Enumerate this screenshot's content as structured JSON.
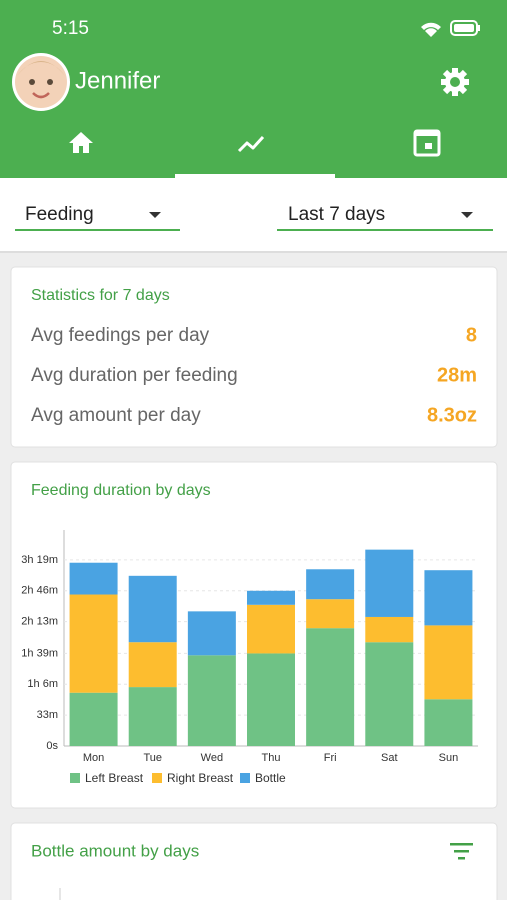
{
  "status_bar": {
    "time": "5:15"
  },
  "header": {
    "name": "Jennifer"
  },
  "filters": {
    "metric": "Feeding",
    "range": "Last 7 days"
  },
  "stats": {
    "title": "Statistics for 7 days",
    "rows": [
      {
        "label": "Avg feedings per day",
        "value": "8"
      },
      {
        "label": "Avg duration per feeding",
        "value": "28m"
      },
      {
        "label": "Avg amount per day",
        "value": "8.3oz"
      }
    ]
  },
  "chart_data": {
    "type": "stacked-bar",
    "title": "Feeding duration by days",
    "categories": [
      "Mon",
      "Tue",
      "Wed",
      "Thu",
      "Fri",
      "Sat",
      "Sun"
    ],
    "series": [
      {
        "name": "Left Breast",
        "color": "#6fc285",
        "values": [
          57,
          63,
          97,
          99,
          126,
          111,
          50
        ]
      },
      {
        "name": "Right Breast",
        "color": "#fdbd2f",
        "values": [
          105,
          48,
          0,
          52,
          31,
          27,
          79
        ]
      },
      {
        "name": "Bottle",
        "color": "#4aa3e2",
        "values": [
          34,
          71,
          47,
          15,
          32,
          72,
          59
        ]
      }
    ],
    "ylim": [
      0,
      231
    ],
    "yticks": [
      {
        "value": 0,
        "label": "0s"
      },
      {
        "value": 33,
        "label": "33m"
      },
      {
        "value": 66,
        "label": "1h 6m"
      },
      {
        "value": 99,
        "label": "1h 39m"
      },
      {
        "value": 133,
        "label": "2h 13m"
      },
      {
        "value": 166,
        "label": "2h 46m"
      },
      {
        "value": 199,
        "label": "3h 19m"
      }
    ],
    "grid": true,
    "legend": "bottom"
  },
  "bottle_card": {
    "title": "Bottle amount by days"
  }
}
